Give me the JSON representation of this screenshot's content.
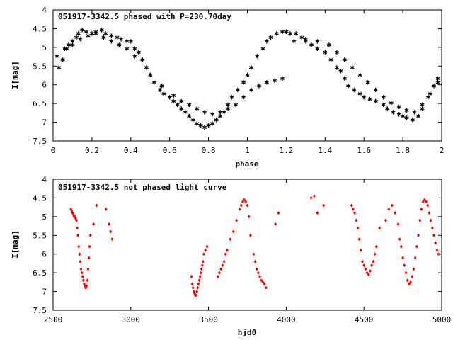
{
  "chart_data": [
    {
      "type": "scatter",
      "title": "051917-3342.5 phased with P=230.70day",
      "xlabel": "phase",
      "ylabel": "I[mag]",
      "xlim": [
        0,
        2
      ],
      "ylim": [
        7.5,
        4
      ],
      "y_inverted": true,
      "xticks": [
        "0",
        "0.2",
        "0.4",
        "0.6",
        "0.8",
        "1",
        "1.2",
        "1.4",
        "1.6",
        "1.8",
        "2"
      ],
      "yticks": [
        "4",
        "4.5",
        "5",
        "5.5",
        "6",
        "6.5",
        "7",
        "7.5"
      ],
      "grid": false,
      "marker": "asterisk",
      "color": "#ff0000",
      "series": [
        {
          "x": [
            0.03,
            0.05,
            0.07,
            0.08,
            0.1,
            0.12,
            0.13,
            0.15,
            0.17,
            0.2,
            0.22,
            0.25,
            0.27,
            0.3,
            0.33,
            0.35,
            0.38,
            0.4,
            0.42,
            0.44,
            0.46,
            0.48,
            0.5,
            0.52,
            0.55,
            0.57,
            0.6,
            0.62,
            0.64,
            0.66,
            0.68,
            0.7,
            0.72,
            0.74,
            0.76,
            0.78,
            0.8,
            0.82,
            0.84,
            0.86,
            0.88,
            0.9,
            0.92,
            0.95,
            0.98,
            1.0,
            1.02,
            1.05,
            1.08,
            1.1,
            1.12,
            1.15,
            1.18,
            1.2,
            1.22,
            1.25,
            1.28,
            1.3,
            1.33,
            1.36,
            1.4,
            1.43,
            1.46,
            1.48,
            1.5,
            1.52,
            1.55,
            1.58,
            1.6,
            1.63,
            1.66,
            1.7,
            1.72,
            1.75,
            1.78,
            1.8,
            1.82,
            1.85,
            1.88,
            1.9,
            1.93,
            1.96,
            1.98
          ],
          "y": [
            5.5,
            5.3,
            5.0,
            4.9,
            4.8,
            4.7,
            4.6,
            4.5,
            4.55,
            4.6,
            4.55,
            4.5,
            4.6,
            4.65,
            4.7,
            4.75,
            4.8,
            4.8,
            5.0,
            5.1,
            5.3,
            5.5,
            5.7,
            5.9,
            6.1,
            6.2,
            6.3,
            6.4,
            6.5,
            6.6,
            6.7,
            6.8,
            6.9,
            7.0,
            7.05,
            7.1,
            7.05,
            7.0,
            6.9,
            6.8,
            6.7,
            6.5,
            6.3,
            6.1,
            5.9,
            5.7,
            5.5,
            5.2,
            5.0,
            4.8,
            4.7,
            4.6,
            4.55,
            4.55,
            4.6,
            4.6,
            4.7,
            4.8,
            4.9,
            5.0,
            5.1,
            5.3,
            5.5,
            5.6,
            5.8,
            6.0,
            6.1,
            6.2,
            6.3,
            6.35,
            6.4,
            6.5,
            6.6,
            6.7,
            6.75,
            6.8,
            6.85,
            6.9,
            6.8,
            6.6,
            6.3,
            6.0,
            5.8
          ]
        },
        {
          "x": [
            0.02,
            0.06,
            0.1,
            0.14,
            0.18,
            0.22,
            0.26,
            0.3,
            0.34,
            0.38,
            0.42,
            0.5,
            0.56,
            0.62,
            0.66,
            0.7,
            0.74,
            0.78,
            0.82,
            0.86,
            0.9,
            0.94,
            0.98,
            1.02,
            1.06,
            1.1,
            1.14,
            1.18,
            1.24,
            1.3,
            1.36,
            1.42,
            1.46,
            1.5,
            1.54,
            1.58,
            1.62,
            1.66,
            1.7,
            1.74,
            1.78,
            1.82,
            1.86,
            1.9,
            1.94,
            1.98
          ],
          "y": [
            5.2,
            5.0,
            4.9,
            4.75,
            4.65,
            4.6,
            4.7,
            4.8,
            4.9,
            5.0,
            5.2,
            5.7,
            6.0,
            6.25,
            6.4,
            6.5,
            6.6,
            6.7,
            6.75,
            6.7,
            6.6,
            6.5,
            6.3,
            6.1,
            6.0,
            5.9,
            5.85,
            5.8,
            4.8,
            4.75,
            4.8,
            4.9,
            5.1,
            5.3,
            5.5,
            5.7,
            5.9,
            6.1,
            6.3,
            6.45,
            6.55,
            6.65,
            6.7,
            6.5,
            6.2,
            5.9
          ]
        }
      ]
    },
    {
      "type": "scatter",
      "title": "051917-3342.5 not phased light curve",
      "xlabel": "hjd0",
      "ylabel": "I[mag]",
      "xlim": [
        2500,
        5000
      ],
      "ylim": [
        7.5,
        4
      ],
      "y_inverted": true,
      "xticks": [
        "2500",
        "3000",
        "3500",
        "4000",
        "4500",
        "5000"
      ],
      "yticks": [
        "4",
        "4.5",
        "5",
        "5.5",
        "6",
        "6.5",
        "7",
        "7.5"
      ],
      "grid": false,
      "marker": "diamond",
      "color": "#ff0000",
      "series": [
        {
          "x": [
            2615,
            2620,
            2625,
            2630,
            2635,
            2640,
            2645,
            2650,
            2655,
            2660,
            2665,
            2670,
            2675,
            2680,
            2685,
            2690,
            2695,
            2700,
            2705,
            2710,
            2715,
            2720,
            2725,
            2730,
            2735,
            2740,
            2760,
            2780,
            2840,
            2860,
            2870,
            2880,
            3390,
            3395,
            3400,
            3405,
            3410,
            3415,
            3420,
            3425,
            3430,
            3435,
            3440,
            3445,
            3450,
            3455,
            3460,
            3465,
            3470,
            3480,
            3490,
            3560,
            3570,
            3580,
            3590,
            3600,
            3610,
            3620,
            3640,
            3660,
            3680,
            3700,
            3710,
            3720,
            3730,
            3740,
            3750,
            3760,
            3770,
            3790,
            3800,
            3810,
            3820,
            3830,
            3840,
            3850,
            3860,
            3870,
            3930,
            3950,
            4160,
            4180,
            4200,
            4240,
            4420,
            4430,
            4440,
            4450,
            4460,
            4470,
            4480,
            4490,
            4500,
            4510,
            4520,
            4530,
            4540,
            4550,
            4560,
            4570,
            4580,
            4600,
            4640,
            4660,
            4680,
            4700,
            4720,
            4730,
            4740,
            4750,
            4760,
            4770,
            4780,
            4790,
            4800,
            4810,
            4820,
            4830,
            4840,
            4850,
            4860,
            4870,
            4880,
            4890,
            4900,
            4910,
            4920,
            4930,
            4940,
            4950,
            4960,
            4970,
            4980
          ],
          "y": [
            4.8,
            4.85,
            4.9,
            4.95,
            5.0,
            5.0,
            5.05,
            5.1,
            5.3,
            5.5,
            5.8,
            6.0,
            6.2,
            6.4,
            6.5,
            6.6,
            6.7,
            6.8,
            6.85,
            6.9,
            6.85,
            6.7,
            6.4,
            6.1,
            5.8,
            5.5,
            5.2,
            4.7,
            4.8,
            5.2,
            5.4,
            5.6,
            6.6,
            6.8,
            6.9,
            7.0,
            7.05,
            7.1,
            7.1,
            7.0,
            6.9,
            6.8,
            6.7,
            6.6,
            6.5,
            6.4,
            6.3,
            6.2,
            6.0,
            5.9,
            5.8,
            6.6,
            6.5,
            6.4,
            6.3,
            6.2,
            6.0,
            5.9,
            5.6,
            5.4,
            5.1,
            4.8,
            4.7,
            4.6,
            4.55,
            4.6,
            4.7,
            5.0,
            5.5,
            6.0,
            6.2,
            6.4,
            6.5,
            6.6,
            6.7,
            6.75,
            6.8,
            6.9,
            5.2,
            4.9,
            4.5,
            4.45,
            4.9,
            4.7,
            4.7,
            4.8,
            4.9,
            5.1,
            5.3,
            5.6,
            5.9,
            6.2,
            6.3,
            6.4,
            6.5,
            6.55,
            6.45,
            6.3,
            6.2,
            6.0,
            5.8,
            5.3,
            5.1,
            4.8,
            4.7,
            4.9,
            5.2,
            5.6,
            5.8,
            6.1,
            6.3,
            6.5,
            6.7,
            6.8,
            6.75,
            6.6,
            6.4,
            6.1,
            5.8,
            5.5,
            5.1,
            4.8,
            4.6,
            4.55,
            4.6,
            4.7,
            4.9,
            5.1,
            5.3,
            5.5,
            5.7,
            5.9,
            6.0
          ]
        }
      ]
    }
  ]
}
